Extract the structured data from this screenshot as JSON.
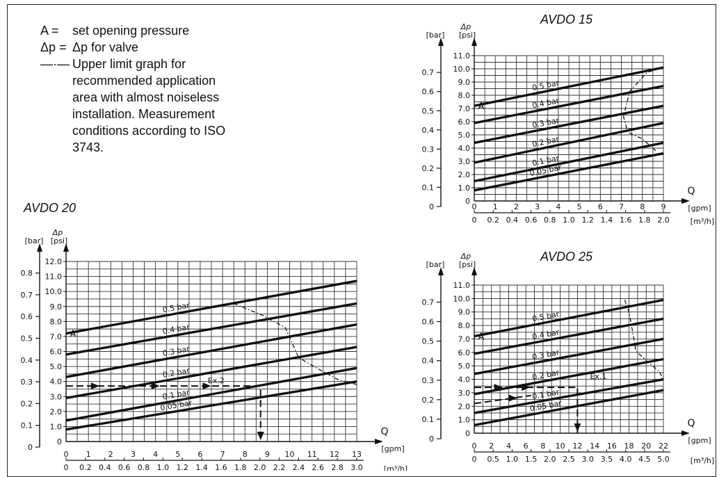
{
  "legend": {
    "items": [
      {
        "symbol": "A",
        "separator": "=",
        "text": "set opening pressure"
      },
      {
        "symbol": "Δp",
        "separator": "=",
        "text": "Δp for valve"
      },
      {
        "symbol": "—·—",
        "separator": "",
        "text": "Upper limit graph for recommended application area with almost noiseless installation. Measurement conditions according to ISO 3743."
      }
    ]
  },
  "chart_data": [
    {
      "type": "line",
      "title": "AVDO 15",
      "ylabel": "Δp",
      "yunits": [
        "[bar]",
        "[psi]"
      ],
      "xlabel": "Q",
      "xunits": [
        "[gpm]",
        "[m³/h]"
      ],
      "xlim_gpm": [
        0,
        9
      ],
      "ylim_psi": [
        0,
        11
      ],
      "x_ticks_gpm": [
        "0",
        "1",
        "2",
        "3",
        "4",
        "5",
        "6",
        "7",
        "8",
        "9"
      ],
      "x_ticks_m3h": [
        "0",
        "0.2",
        "0.4",
        "0.6",
        "0.8",
        "1.0",
        "1.2",
        "1.4",
        "1.6",
        "1.8",
        "2.0"
      ],
      "y_ticks_psi": [
        "1.0",
        "2.0",
        "3.0",
        "4.0",
        "5.0",
        "6.0",
        "7.0",
        "8.0",
        "9.0",
        "10.0",
        "11.0"
      ],
      "y_ticks_bar": [
        "0",
        "0.1",
        "0.2",
        "0.3",
        "0.4",
        "0.5",
        "0.6",
        "0.7"
      ],
      "opening_marker": "A",
      "series": [
        {
          "name": "0.5 bar",
          "x": [
            0,
            9
          ],
          "y": [
            7.2,
            10.1
          ]
        },
        {
          "name": "0.4 bar",
          "x": [
            0,
            9
          ],
          "y": [
            5.9,
            8.7
          ]
        },
        {
          "name": "0.3 bar",
          "x": [
            0,
            9
          ],
          "y": [
            4.4,
            7.2
          ]
        },
        {
          "name": "0.2 bar",
          "x": [
            0,
            9
          ],
          "y": [
            2.9,
            5.9
          ]
        },
        {
          "name": "0.1 bar",
          "x": [
            0,
            9
          ],
          "y": [
            1.5,
            4.4
          ]
        },
        {
          "name": "0.05 bar",
          "x": [
            0,
            9
          ],
          "y": [
            0.8,
            3.6
          ]
        }
      ],
      "limit_curve": {
        "x": [
          8.9,
          8.2,
          7.4,
          7.1,
          7.3,
          8.0,
          8.7
        ],
        "y": [
          10.1,
          9.7,
          8.3,
          6.4,
          5.2,
          4.7,
          3.7
        ]
      },
      "examples": []
    },
    {
      "type": "line",
      "title": "AVDO 20",
      "ylabel": "Δp",
      "yunits": [
        "[bar]",
        "[psi]"
      ],
      "xlabel": "Q",
      "xunits": [
        "[gpm]",
        "[m³/h]"
      ],
      "xlim_gpm": [
        0,
        13
      ],
      "ylim_psi": [
        0,
        12
      ],
      "x_ticks_gpm": [
        "0",
        "1",
        "2",
        "3",
        "4",
        "5",
        "6",
        "7",
        "8",
        "9",
        "10",
        "11",
        "12",
        "13"
      ],
      "x_ticks_m3h": [
        "0",
        "0.2",
        "0.4",
        "0.6",
        "0.8",
        "1.0",
        "1.2",
        "1.4",
        "1.6",
        "1.8",
        "2.0",
        "2.2",
        "2.4",
        "2.6",
        "2.8",
        "3.0"
      ],
      "y_ticks_psi": [
        "1.0",
        "2.0",
        "3.0",
        "4.0",
        "5.0",
        "6.0",
        "7.0",
        "8.0",
        "9.0",
        "10.0",
        "11.0",
        "12.0"
      ],
      "y_ticks_bar": [
        "0",
        "0.1",
        "0.2",
        "0.3",
        "0.4",
        "0.5",
        "0.6",
        "0.7",
        "0.8"
      ],
      "opening_marker": "A",
      "series": [
        {
          "name": "0.5 bar",
          "x": [
            0,
            13
          ],
          "y": [
            7.2,
            10.7
          ]
        },
        {
          "name": "0.4 bar",
          "x": [
            0,
            13
          ],
          "y": [
            5.8,
            9.2
          ]
        },
        {
          "name": "0.3 bar",
          "x": [
            0,
            13
          ],
          "y": [
            4.3,
            7.8
          ]
        },
        {
          "name": "0.2 bar",
          "x": [
            0,
            13
          ],
          "y": [
            2.9,
            6.3
          ]
        },
        {
          "name": "0.1 bar",
          "x": [
            0,
            13
          ],
          "y": [
            1.4,
            4.9
          ]
        },
        {
          "name": "0.05 bar",
          "x": [
            0,
            13
          ],
          "y": [
            0.8,
            4.0
          ]
        }
      ],
      "limit_curve": {
        "x": [
          7.5,
          8.8,
          9.8,
          10.4,
          11.2,
          12.2,
          13.0
        ],
        "y": [
          9.2,
          8.4,
          7.6,
          5.6,
          4.9,
          4.1,
          3.8
        ]
      },
      "examples": [
        {
          "label": "Ex.2",
          "path_x": [
            0,
            8.7,
            8.7
          ],
          "path_y": [
            3.7,
            3.7,
            0
          ],
          "arrows_x": [
            1.3,
            4.0,
            6.3
          ]
        }
      ]
    },
    {
      "type": "line",
      "title": "AVDO 25",
      "ylabel": "Δp",
      "yunits": [
        "[bar]",
        "[psi]"
      ],
      "xlabel": "Q",
      "xunits": [
        "[gpm]",
        "[m³/h]"
      ],
      "xlim_gpm": [
        0,
        22
      ],
      "ylim_psi": [
        0,
        11
      ],
      "x_ticks_gpm": [
        "0",
        "2",
        "4",
        "6",
        "8",
        "10",
        "12",
        "14",
        "16",
        "18",
        "20",
        "22"
      ],
      "x_ticks_m3h": [
        "0",
        "0.5",
        "1.0",
        "1.5",
        "2.0",
        "2.5",
        "3.0",
        "3.5",
        "4.0",
        "4.5",
        "5.0"
      ],
      "y_ticks_psi": [
        "1.0",
        "2.0",
        "3.0",
        "4.0",
        "5.0",
        "6.0",
        "7.0",
        "8.0",
        "9.0",
        "10.0",
        "11.0"
      ],
      "y_ticks_bar": [
        "0",
        "0.1",
        "0.2",
        "0.3",
        "0.4",
        "0.5",
        "0.6",
        "0.7"
      ],
      "opening_marker": "A",
      "series": [
        {
          "name": "0.5 bar",
          "x": [
            0,
            22
          ],
          "y": [
            7.2,
            9.9
          ]
        },
        {
          "name": "0.4 bar",
          "x": [
            0,
            22
          ],
          "y": [
            5.9,
            8.5
          ]
        },
        {
          "name": "0.3 bar",
          "x": [
            0,
            22
          ],
          "y": [
            4.4,
            7.0
          ]
        },
        {
          "name": "0.2 bar",
          "x": [
            0,
            22
          ],
          "y": [
            2.9,
            5.5
          ]
        },
        {
          "name": "0.1 bar",
          "x": [
            0,
            22
          ],
          "y": [
            1.5,
            4.0
          ]
        },
        {
          "name": "0.05 bar",
          "x": [
            0,
            22
          ],
          "y": [
            0.6,
            3.2
          ]
        }
      ],
      "limit_curve": {
        "x": [
          17.5,
          18.0,
          18.4,
          18.8,
          20.0,
          21.5,
          22.0
        ],
        "y": [
          9.9,
          9.0,
          7.6,
          6.1,
          5.4,
          4.6,
          4.0
        ]
      },
      "examples": [
        {
          "label": "Ex.1",
          "path_x": [
            0,
            12.0,
            12.0
          ],
          "path_y": [
            3.4,
            3.4,
            0
          ],
          "arrows_x": [
            2.8,
            6.0
          ]
        },
        {
          "label": "",
          "path_x": [
            0,
            6.6
          ],
          "path_y": [
            2.2,
            2.8
          ],
          "arrows_x": [
            4.5
          ]
        }
      ]
    }
  ]
}
